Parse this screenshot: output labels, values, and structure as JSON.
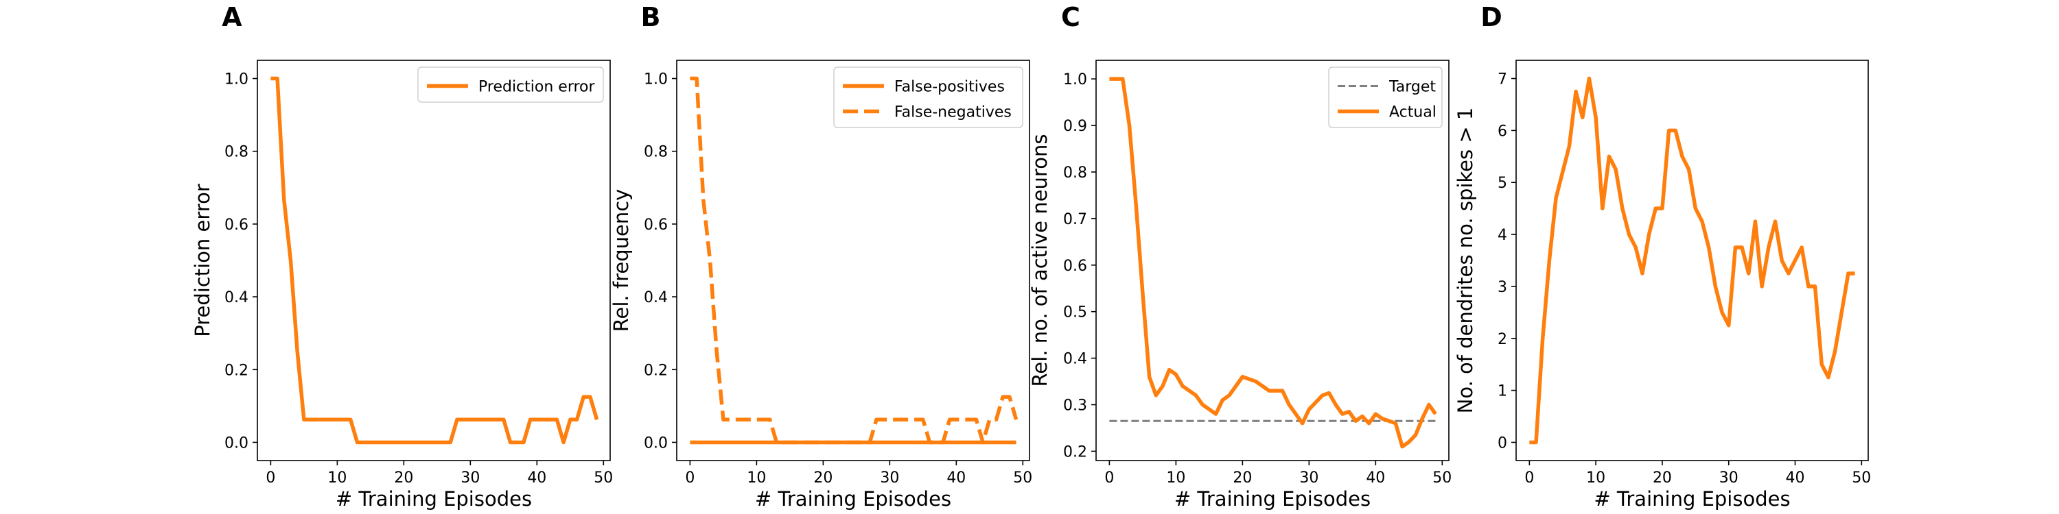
{
  "colors": {
    "series": "#ff7f0e",
    "target": "#7f7f7f",
    "axis": "#000000"
  },
  "chart_data": [
    {
      "panel": "A",
      "type": "line",
      "xlabel": "# Training Episodes",
      "ylabel": "Prediction error",
      "xlim": [
        -2,
        51
      ],
      "ylim": [
        -0.05,
        1.05
      ],
      "xticks": [
        0,
        10,
        20,
        30,
        40,
        50
      ],
      "yticks": [
        0.0,
        0.2,
        0.4,
        0.6,
        0.8,
        1.0
      ],
      "ytick_labels": [
        "0.0",
        "0.2",
        "0.4",
        "0.6",
        "0.8",
        "1.0"
      ],
      "legend_position": "upper right",
      "series": [
        {
          "name": "Prediction error",
          "style": "solid",
          "x": [
            0,
            1,
            2,
            3,
            4,
            5,
            6,
            7,
            8,
            9,
            10,
            11,
            12,
            13,
            14,
            15,
            16,
            17,
            18,
            19,
            20,
            21,
            22,
            23,
            24,
            25,
            26,
            27,
            28,
            29,
            30,
            31,
            32,
            33,
            34,
            35,
            36,
            37,
            38,
            39,
            40,
            41,
            42,
            43,
            44,
            45,
            46,
            47,
            48,
            49
          ],
          "y": [
            1.0,
            1.0,
            0.667,
            0.5,
            0.25,
            0.0625,
            0.0625,
            0.0625,
            0.0625,
            0.0625,
            0.0625,
            0.0625,
            0.0625,
            0,
            0,
            0,
            0,
            0,
            0,
            0,
            0,
            0,
            0,
            0,
            0,
            0,
            0,
            0,
            0.0625,
            0.0625,
            0.0625,
            0.0625,
            0.0625,
            0.0625,
            0.0625,
            0.0625,
            0,
            0,
            0,
            0.0625,
            0.0625,
            0.0625,
            0.0625,
            0.0625,
            0,
            0.0625,
            0.0625,
            0.125,
            0.125,
            0.0625
          ]
        }
      ]
    },
    {
      "panel": "B",
      "type": "line",
      "xlabel": "# Training Episodes",
      "ylabel": "Rel. frequency",
      "xlim": [
        -2,
        51
      ],
      "ylim": [
        -0.05,
        1.05
      ],
      "xticks": [
        0,
        10,
        20,
        30,
        40,
        50
      ],
      "yticks": [
        0.0,
        0.2,
        0.4,
        0.6,
        0.8,
        1.0
      ],
      "ytick_labels": [
        "0.0",
        "0.2",
        "0.4",
        "0.6",
        "0.8",
        "1.0"
      ],
      "legend_position": "upper right",
      "series": [
        {
          "name": "False-positives",
          "style": "solid",
          "x": [
            0,
            1,
            2,
            3,
            4,
            5,
            6,
            7,
            8,
            9,
            10,
            11,
            12,
            13,
            14,
            15,
            16,
            17,
            18,
            19,
            20,
            21,
            22,
            23,
            24,
            25,
            26,
            27,
            28,
            29,
            30,
            31,
            32,
            33,
            34,
            35,
            36,
            37,
            38,
            39,
            40,
            41,
            42,
            43,
            44,
            45,
            46,
            47,
            48,
            49
          ],
          "y": [
            0,
            0,
            0,
            0,
            0,
            0,
            0,
            0,
            0,
            0,
            0,
            0,
            0,
            0,
            0,
            0,
            0,
            0,
            0,
            0,
            0,
            0,
            0,
            0,
            0,
            0,
            0,
            0,
            0,
            0,
            0,
            0,
            0,
            0,
            0,
            0,
            0,
            0,
            0,
            0,
            0,
            0,
            0,
            0,
            0,
            0,
            0,
            0,
            0,
            0
          ]
        },
        {
          "name": "False-negatives",
          "style": "dashed",
          "x": [
            0,
            1,
            2,
            3,
            4,
            5,
            6,
            7,
            8,
            9,
            10,
            11,
            12,
            13,
            14,
            15,
            16,
            17,
            18,
            19,
            20,
            21,
            22,
            23,
            24,
            25,
            26,
            27,
            28,
            29,
            30,
            31,
            32,
            33,
            34,
            35,
            36,
            37,
            38,
            39,
            40,
            41,
            42,
            43,
            44,
            45,
            46,
            47,
            48,
            49
          ],
          "y": [
            1.0,
            1.0,
            0.667,
            0.5,
            0.25,
            0.0625,
            0.0625,
            0.0625,
            0.0625,
            0.0625,
            0.0625,
            0.0625,
            0.0625,
            0,
            0,
            0,
            0,
            0,
            0,
            0,
            0,
            0,
            0,
            0,
            0,
            0,
            0,
            0,
            0.0625,
            0.0625,
            0.0625,
            0.0625,
            0.0625,
            0.0625,
            0.0625,
            0.0625,
            0,
            0,
            0,
            0.0625,
            0.0625,
            0.0625,
            0.0625,
            0.0625,
            0,
            0.0625,
            0.0625,
            0.125,
            0.125,
            0.0625
          ]
        }
      ]
    },
    {
      "panel": "C",
      "type": "line",
      "xlabel": "# Training Episodes",
      "ylabel": "Rel. no. of active neurons",
      "xlim": [
        -2,
        51
      ],
      "ylim": [
        0.18,
        1.04
      ],
      "xticks": [
        0,
        10,
        20,
        30,
        40,
        50
      ],
      "yticks": [
        0.2,
        0.3,
        0.4,
        0.5,
        0.6,
        0.7,
        0.8,
        0.9,
        1.0
      ],
      "ytick_labels": [
        "0.2",
        "0.3",
        "0.4",
        "0.5",
        "0.6",
        "0.7",
        "0.8",
        "0.9",
        "1.0"
      ],
      "legend_position": "upper right",
      "series": [
        {
          "name": "Target",
          "style": "dashed-gray",
          "x": [
            0,
            49
          ],
          "y": [
            0.265,
            0.265
          ]
        },
        {
          "name": "Actual",
          "style": "solid",
          "x": [
            0,
            1,
            2,
            3,
            4,
            5,
            6,
            7,
            8,
            9,
            10,
            11,
            12,
            13,
            14,
            15,
            16,
            17,
            18,
            19,
            20,
            21,
            22,
            23,
            24,
            25,
            26,
            27,
            28,
            29,
            30,
            31,
            32,
            33,
            34,
            35,
            36,
            37,
            38,
            39,
            40,
            41,
            42,
            43,
            44,
            45,
            46,
            47,
            48,
            49
          ],
          "y": [
            1.0,
            1.0,
            1.0,
            0.9,
            0.73,
            0.54,
            0.36,
            0.32,
            0.34,
            0.375,
            0.365,
            0.34,
            0.33,
            0.32,
            0.3,
            0.29,
            0.28,
            0.31,
            0.32,
            0.34,
            0.36,
            0.355,
            0.35,
            0.34,
            0.33,
            0.33,
            0.33,
            0.3,
            0.28,
            0.26,
            0.29,
            0.305,
            0.32,
            0.325,
            0.3,
            0.28,
            0.285,
            0.265,
            0.275,
            0.26,
            0.28,
            0.27,
            0.265,
            0.26,
            0.21,
            0.22,
            0.235,
            0.27,
            0.3,
            0.28
          ]
        }
      ]
    },
    {
      "panel": "D",
      "type": "line",
      "xlabel": "# Training Episodes",
      "ylabel": "No. of dendrites no. spikes > 1",
      "xlim": [
        -2,
        51
      ],
      "ylim": [
        -0.35,
        7.35
      ],
      "xticks": [
        0,
        10,
        20,
        30,
        40,
        50
      ],
      "yticks": [
        0,
        1,
        2,
        3,
        4,
        5,
        6,
        7
      ],
      "ytick_labels": [
        "0",
        "1",
        "2",
        "3",
        "4",
        "5",
        "6",
        "7"
      ],
      "legend_position": "none",
      "series": [
        {
          "name": "",
          "style": "solid",
          "x": [
            0,
            1,
            2,
            3,
            4,
            5,
            6,
            7,
            8,
            9,
            10,
            11,
            12,
            13,
            14,
            15,
            16,
            17,
            18,
            19,
            20,
            21,
            22,
            23,
            24,
            25,
            26,
            27,
            28,
            29,
            30,
            31,
            32,
            33,
            34,
            35,
            36,
            37,
            38,
            39,
            40,
            41,
            42,
            43,
            44,
            45,
            46,
            47,
            48,
            49
          ],
          "y": [
            0,
            0,
            2.0,
            3.5,
            4.7,
            5.2,
            5.7,
            6.75,
            6.25,
            7.0,
            6.25,
            4.5,
            5.5,
            5.25,
            4.5,
            4.0,
            3.75,
            3.25,
            4.0,
            4.5,
            4.5,
            6.0,
            6.0,
            5.5,
            5.25,
            4.5,
            4.25,
            3.75,
            3.0,
            2.5,
            2.25,
            3.75,
            3.75,
            3.25,
            4.25,
            3.0,
            3.75,
            4.25,
            3.5,
            3.25,
            3.5,
            3.75,
            3.0,
            3.0,
            1.5,
            1.25,
            1.75,
            2.5,
            3.25,
            3.25
          ]
        }
      ]
    }
  ]
}
